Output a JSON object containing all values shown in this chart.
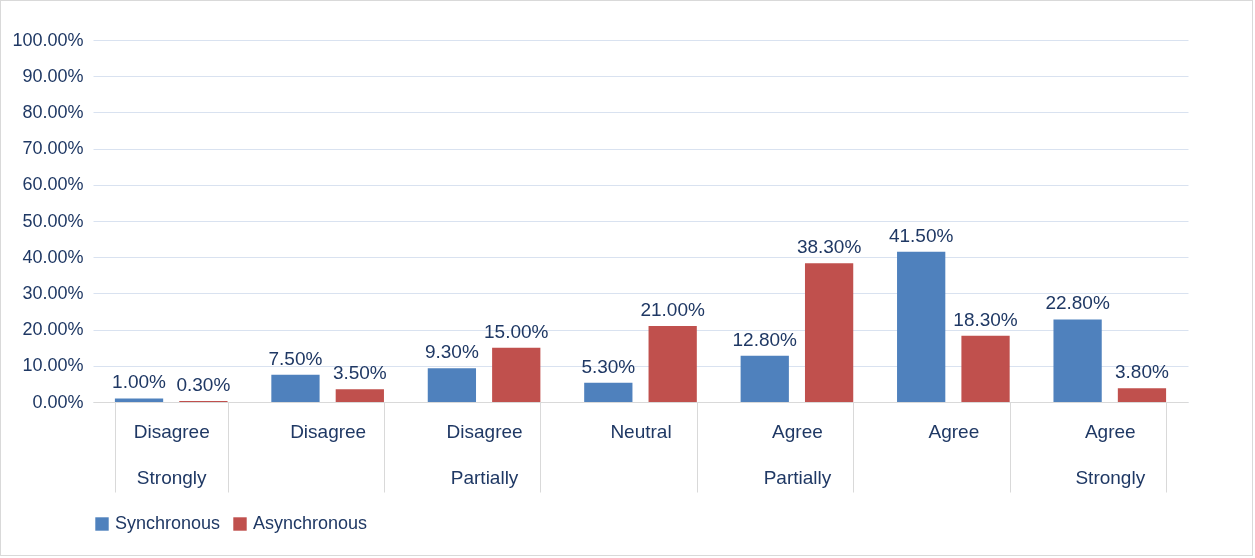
{
  "chart_data": {
    "type": "bar",
    "categories": [
      "Disagree Strongly",
      "Disagree",
      "Disagree Partially",
      "Neutral",
      "Agree Partially",
      "Agree",
      "Agree Strongly"
    ],
    "series": [
      {
        "name": "Synchronous",
        "color": "#4f81bd",
        "values": [
          1.0,
          7.5,
          9.3,
          5.3,
          12.8,
          41.5,
          22.8
        ],
        "value_labels": [
          "1.00%",
          "7.50%",
          "9.30%",
          "5.30%",
          "12.80%",
          "41.50%",
          "22.80%"
        ]
      },
      {
        "name": "Asynchronous",
        "color": "#c0504d",
        "values": [
          0.3,
          3.5,
          15.0,
          21.0,
          38.3,
          18.3,
          3.8
        ],
        "value_labels": [
          "0.30%",
          "3.50%",
          "15.00%",
          "21.00%",
          "38.30%",
          "18.30%",
          "3.80%"
        ]
      }
    ],
    "ylim": [
      0,
      100
    ],
    "yticks": [
      {
        "value": 0,
        "label": "0.00%"
      },
      {
        "value": 10,
        "label": "10.00%"
      },
      {
        "value": 20,
        "label": "20.00%"
      },
      {
        "value": 30,
        "label": "30.00%"
      },
      {
        "value": 40,
        "label": "40.00%"
      },
      {
        "value": 50,
        "label": "50.00%"
      },
      {
        "value": 60,
        "label": "60.00%"
      },
      {
        "value": 70,
        "label": "70.00%"
      },
      {
        "value": 80,
        "label": "80.00%"
      },
      {
        "value": 90,
        "label": "90.00%"
      },
      {
        "value": 100,
        "label": "100.00%"
      }
    ],
    "grid": "y",
    "legend": "bottom"
  }
}
